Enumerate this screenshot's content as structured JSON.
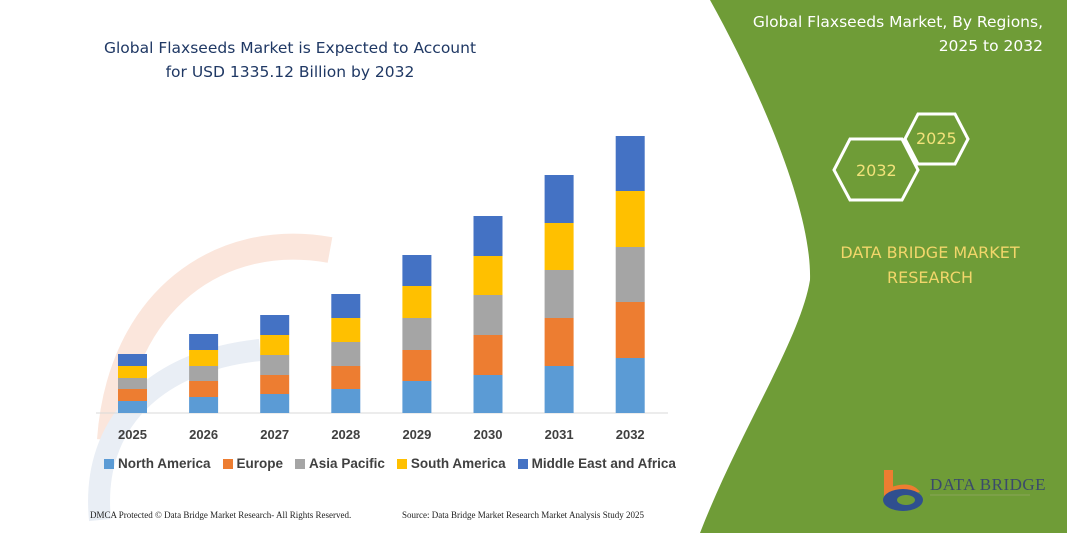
{
  "header": {
    "title": "Global Flaxseeds Market is Expected to Account for USD 1335.12 Billion by 2032"
  },
  "side_panel": {
    "title": "Global Flaxseeds Market, By Regions, 2025 to 2032",
    "hex_start": "2025",
    "hex_end": "2032",
    "brand": "DATA BRIDGE MARKET RESEARCH",
    "logo_text": "DATA BRIDGE",
    "color": "#6f9c37"
  },
  "footer": {
    "left": "DMCA Protected © Data Bridge Market Research- All Rights Reserved.",
    "right": "Source: Data Bridge Market Research  Market Analysis Study 2025"
  },
  "chart_data": {
    "type": "bar",
    "stacked": true,
    "title": "Global Flaxseeds Market is Expected to Account for USD 1335.12 Billion by 2032",
    "xlabel": "",
    "ylabel": "",
    "y_axis_shown": false,
    "grid": false,
    "legend_placement": "bottom",
    "categories": [
      "2025",
      "2026",
      "2027",
      "2028",
      "2029",
      "2030",
      "2031",
      "2032"
    ],
    "series": [
      {
        "name": "North America",
        "color": "#5b9bd5",
        "values": [
          12,
          16,
          19,
          24,
          32,
          38,
          47,
          55
        ]
      },
      {
        "name": "Europe",
        "color": "#ed7d31",
        "values": [
          12,
          16,
          19,
          23,
          31,
          40,
          48,
          56
        ]
      },
      {
        "name": "Asia Pacific",
        "color": "#a5a5a5",
        "values": [
          11,
          15,
          20,
          24,
          32,
          40,
          48,
          55
        ]
      },
      {
        "name": "South America",
        "color": "#ffc000",
        "values": [
          12,
          16,
          20,
          24,
          32,
          39,
          47,
          56
        ]
      },
      {
        "name": "Middle East and Africa",
        "color": "#4472c4",
        "values": [
          12,
          16,
          20,
          24,
          31,
          40,
          48,
          55
        ]
      }
    ]
  }
}
